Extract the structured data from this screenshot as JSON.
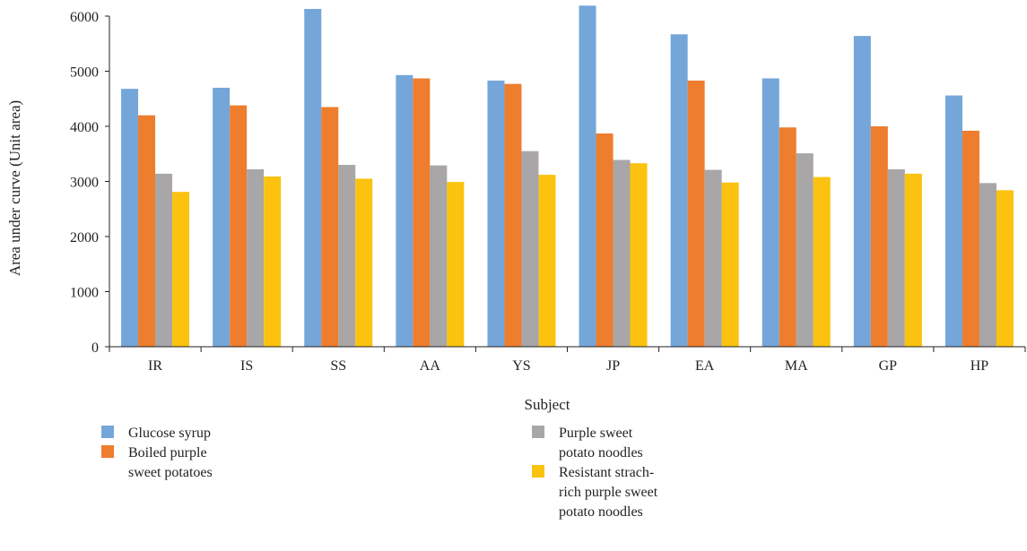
{
  "chart_data": {
    "type": "bar",
    "title": "",
    "xlabel": "Subject",
    "ylabel": "Area under curve (Unit area)",
    "ylim": [
      0,
      6000
    ],
    "yticks": [
      0,
      1000,
      2000,
      3000,
      4000,
      5000,
      6000
    ],
    "grid": false,
    "legend_position": "bottom",
    "categories": [
      "IR",
      "IS",
      "SS",
      "AA",
      "YS",
      "JP",
      "EA",
      "MA",
      "GP",
      "HP"
    ],
    "series": [
      {
        "name": "Glucose syrup",
        "legend_lines": [
          "Glucose syrup"
        ],
        "color": "#74a6d9",
        "values": [
          4680,
          4700,
          6130,
          4930,
          4830,
          6190,
          5670,
          4870,
          5640,
          4560
        ]
      },
      {
        "name": "Boiled purple sweet potatoes",
        "legend_lines": [
          "Boiled purple",
          "sweet potatoes"
        ],
        "color": "#ee7d2e",
        "values": [
          4200,
          4380,
          4350,
          4870,
          4770,
          3870,
          4830,
          3980,
          4000,
          3920
        ]
      },
      {
        "name": "Purple sweet potato noodles",
        "legend_lines": [
          "Purple sweet",
          "potato noodles"
        ],
        "color": "#a8a6a6",
        "values": [
          3140,
          3220,
          3300,
          3290,
          3550,
          3390,
          3210,
          3510,
          3220,
          2970
        ]
      },
      {
        "name": "Resistant strach-rich purple sweet potato noodles",
        "legend_lines": [
          "Resistant strach-",
          "rich purple sweet",
          "potato noodles"
        ],
        "color": "#fbc20f",
        "values": [
          2810,
          3090,
          3050,
          2990,
          3120,
          3330,
          2980,
          3080,
          3140,
          2840
        ]
      }
    ]
  }
}
